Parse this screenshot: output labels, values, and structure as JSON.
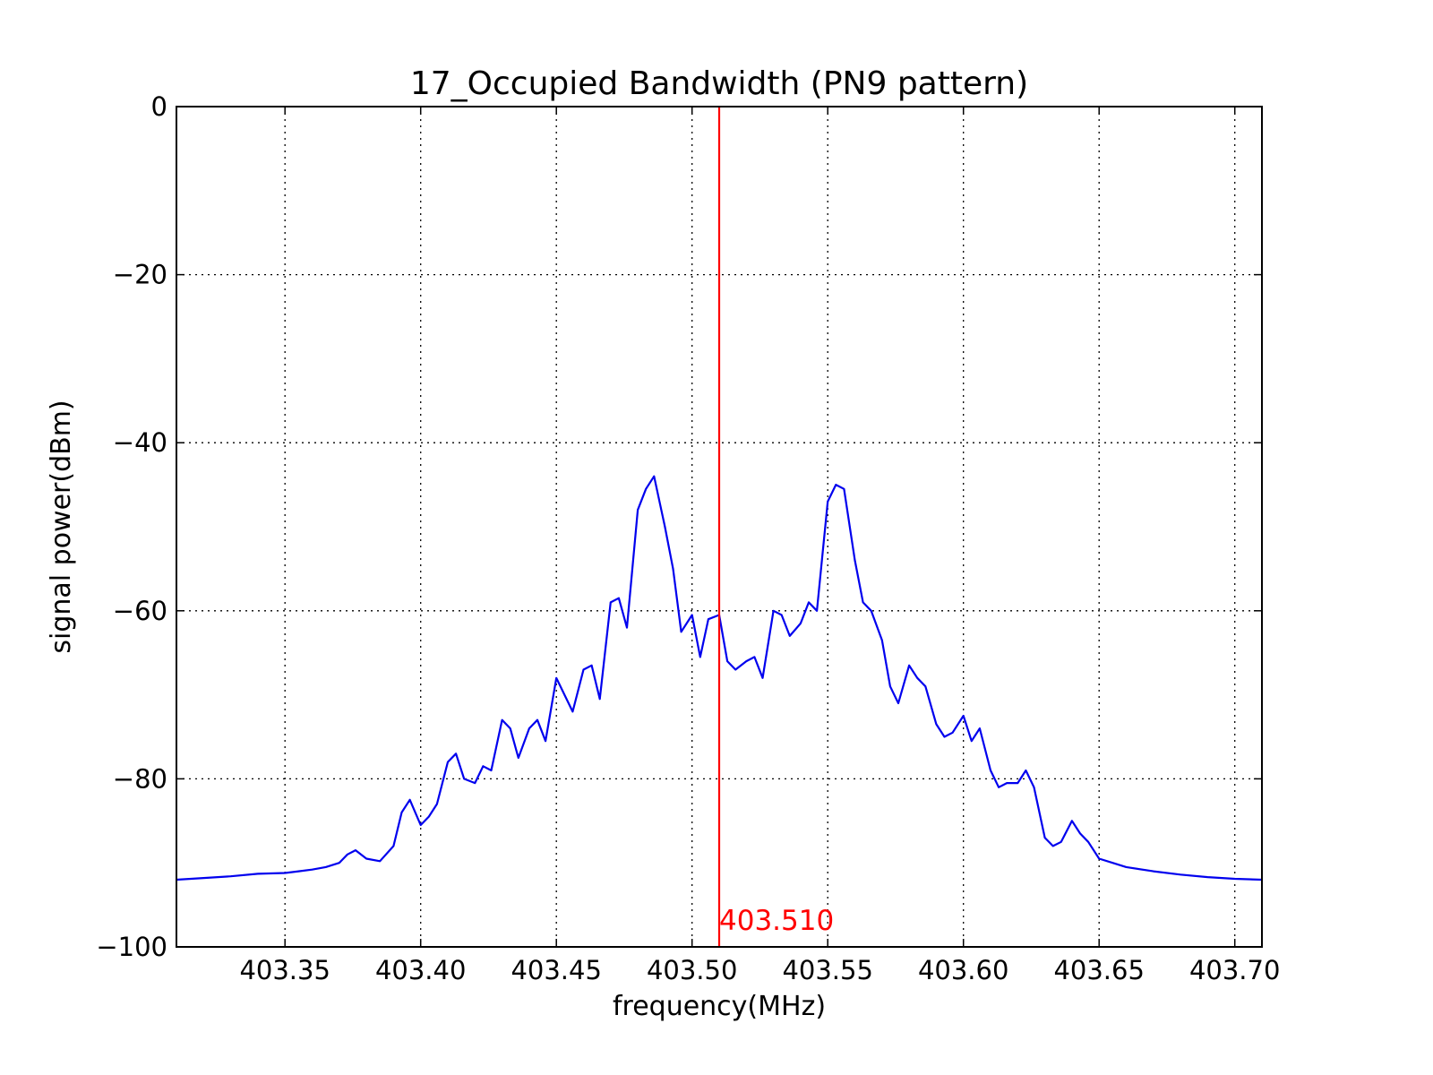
{
  "chart_data": {
    "type": "line",
    "title": "17_Occupied Bandwidth (PN9 pattern)",
    "xlabel": "frequency(MHz)",
    "ylabel": "signal power(dBm)",
    "xlim": [
      403.31,
      403.71
    ],
    "ylim": [
      -100,
      0
    ],
    "xticks": [
      403.35,
      403.4,
      403.45,
      403.5,
      403.55,
      403.6,
      403.65,
      403.7
    ],
    "xtick_labels": [
      "403.35",
      "403.40",
      "403.45",
      "403.50",
      "403.55",
      "403.60",
      "403.65",
      "403.70"
    ],
    "yticks": [
      0,
      -20,
      -40,
      -60,
      -80,
      -100
    ],
    "ytick_labels": [
      "0",
      "−20",
      "−40",
      "−60",
      "−80",
      "−100"
    ],
    "grid": true,
    "series": [
      {
        "color": "#0000ee",
        "x": [
          403.31,
          403.32,
          403.33,
          403.34,
          403.35,
          403.355,
          403.36,
          403.365,
          403.37,
          403.373,
          403.376,
          403.38,
          403.385,
          403.39,
          403.393,
          403.396,
          403.4,
          403.403,
          403.406,
          403.41,
          403.413,
          403.416,
          403.42,
          403.423,
          403.426,
          403.43,
          403.433,
          403.436,
          403.44,
          403.443,
          403.446,
          403.45,
          403.453,
          403.456,
          403.46,
          403.463,
          403.466,
          403.47,
          403.473,
          403.476,
          403.48,
          403.483,
          403.486,
          403.49,
          403.493,
          403.496,
          403.5,
          403.503,
          403.506,
          403.51,
          403.513,
          403.516,
          403.52,
          403.523,
          403.526,
          403.53,
          403.533,
          403.536,
          403.54,
          403.543,
          403.546,
          403.55,
          403.553,
          403.556,
          403.56,
          403.563,
          403.566,
          403.57,
          403.573,
          403.576,
          403.58,
          403.583,
          403.586,
          403.59,
          403.593,
          403.596,
          403.6,
          403.603,
          403.606,
          403.61,
          403.613,
          403.616,
          403.62,
          403.623,
          403.626,
          403.63,
          403.633,
          403.636,
          403.64,
          403.643,
          403.646,
          403.65,
          403.655,
          403.66,
          403.67,
          403.68,
          403.69,
          403.7,
          403.71
        ],
        "y": [
          -92.0,
          -91.8,
          -91.6,
          -91.3,
          -91.2,
          -91.0,
          -90.8,
          -90.5,
          -90.0,
          -89.0,
          -88.5,
          -89.5,
          -89.8,
          -88.0,
          -84.0,
          -82.5,
          -85.5,
          -84.5,
          -83.0,
          -78.0,
          -77.0,
          -80.0,
          -80.5,
          -78.5,
          -79.0,
          -73.0,
          -74.0,
          -77.5,
          -74.0,
          -73.0,
          -75.5,
          -68.0,
          -70.0,
          -72.0,
          -67.0,
          -66.5,
          -70.5,
          -59.0,
          -58.5,
          -62.0,
          -48.0,
          -45.5,
          -44.0,
          -50.0,
          -55.0,
          -62.5,
          -60.5,
          -65.5,
          -61.0,
          -60.5,
          -66.0,
          -67.0,
          -66.0,
          -65.5,
          -68.0,
          -60.0,
          -60.5,
          -63.0,
          -61.5,
          -59.0,
          -60.0,
          -47.0,
          -45.0,
          -45.5,
          -54.0,
          -59.0,
          -60.0,
          -63.5,
          -69.0,
          -71.0,
          -66.5,
          -68.0,
          -69.0,
          -73.5,
          -75.0,
          -74.5,
          -72.5,
          -75.5,
          -74.0,
          -79.0,
          -81.0,
          -80.5,
          -80.5,
          -79.0,
          -81.0,
          -87.0,
          -88.0,
          -87.5,
          -85.0,
          -86.5,
          -87.5,
          -89.5,
          -90.0,
          -90.5,
          -91.0,
          -91.4,
          -91.7,
          -91.9,
          -92.0
        ]
      }
    ],
    "marker": {
      "x": 403.51,
      "label": "403.510",
      "color": "#ff0000"
    }
  }
}
